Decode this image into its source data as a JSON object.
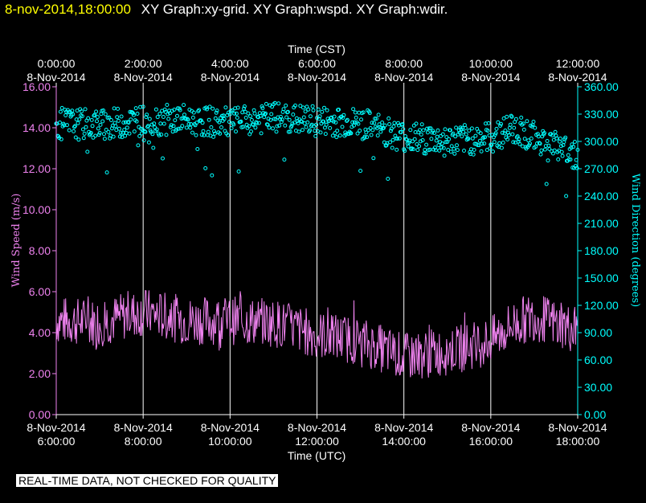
{
  "header": {
    "timestamp": "8-nov-2014,18:00:00",
    "graphs": "XY Graph:xy-grid.  XY Graph:wspd.  XY Graph:wdir."
  },
  "footer": {
    "note": "REAL-TIME DATA, NOT CHECKED FOR QUALITY"
  },
  "colors": {
    "background": "#000000",
    "wind_speed": "#ee82ee",
    "wind_direction": "#00ffff",
    "grid": "#ffffff",
    "title_timestamp": "#ffff00"
  },
  "chart_data": {
    "type": "line",
    "top_axis": {
      "title": "Time (CST)",
      "ticks": [
        {
          "time": "0:00:00",
          "date": "8-Nov-2014"
        },
        {
          "time": "2:00:00",
          "date": "8-Nov-2014"
        },
        {
          "time": "4:00:00",
          "date": "8-Nov-2014"
        },
        {
          "time": "6:00:00",
          "date": "8-Nov-2014"
        },
        {
          "time": "8:00:00",
          "date": "8-Nov-2014"
        },
        {
          "time": "10:00:00",
          "date": "8-Nov-2014"
        },
        {
          "time": "12:00:00",
          "date": "8-Nov-2014"
        }
      ]
    },
    "bottom_axis": {
      "title": "Time (UTC)",
      "ticks": [
        {
          "date": "8-Nov-2014",
          "time": "6:00:00"
        },
        {
          "date": "8-Nov-2014",
          "time": "8:00:00"
        },
        {
          "date": "8-Nov-2014",
          "time": "10:00:00"
        },
        {
          "date": "8-Nov-2014",
          "time": "12:00:00"
        },
        {
          "date": "8-Nov-2014",
          "time": "14:00:00"
        },
        {
          "date": "8-Nov-2014",
          "time": "16:00:00"
        },
        {
          "date": "8-Nov-2014",
          "time": "18:00:00"
        }
      ],
      "range_utc": [
        "2014-11-08 06:00:00",
        "2014-11-08 18:00:00"
      ]
    },
    "left_axis": {
      "title": "Wind Speed (m/s)",
      "ylim": [
        0,
        16
      ],
      "ticks": [
        "0.00",
        "2.00",
        "4.00",
        "6.00",
        "8.00",
        "10.00",
        "12.00",
        "14.00",
        "16.00"
      ]
    },
    "right_axis": {
      "title": "Wind Direction (degrees)",
      "ylim": [
        0,
        360
      ],
      "ticks": [
        "0.00",
        "30.00",
        "60.00",
        "90.00",
        "120.00",
        "150.00",
        "180.00",
        "210.00",
        "240.00",
        "270.00",
        "300.00",
        "330.00",
        "360.00"
      ]
    },
    "grid": "vertical lines at each 2-hour tick",
    "series": [
      {
        "name": "Wind Speed (m/s)",
        "style": "line",
        "axis": "left",
        "x_utc": [
          "06:00",
          "07:00",
          "08:00",
          "09:00",
          "10:00",
          "11:00",
          "12:00",
          "13:00",
          "14:00",
          "15:00",
          "16:00",
          "16:30",
          "17:00",
          "18:00"
        ],
        "values": [
          4.6,
          4.5,
          5.0,
          4.6,
          4.6,
          4.5,
          3.9,
          3.6,
          2.8,
          3.1,
          3.6,
          4.4,
          4.8,
          4.1
        ]
      },
      {
        "name": "Wind Direction (degrees)",
        "style": "scatter",
        "axis": "right",
        "x_utc": [
          "06:00",
          "07:00",
          "08:00",
          "09:00",
          "10:00",
          "11:00",
          "12:00",
          "13:00",
          "14:00",
          "15:00",
          "16:00",
          "16:30",
          "17:00",
          "18:00"
        ],
        "values": [
          320,
          318,
          323,
          324,
          320,
          326,
          322,
          320,
          305,
          300,
          304,
          315,
          305,
          285
        ]
      }
    ]
  }
}
